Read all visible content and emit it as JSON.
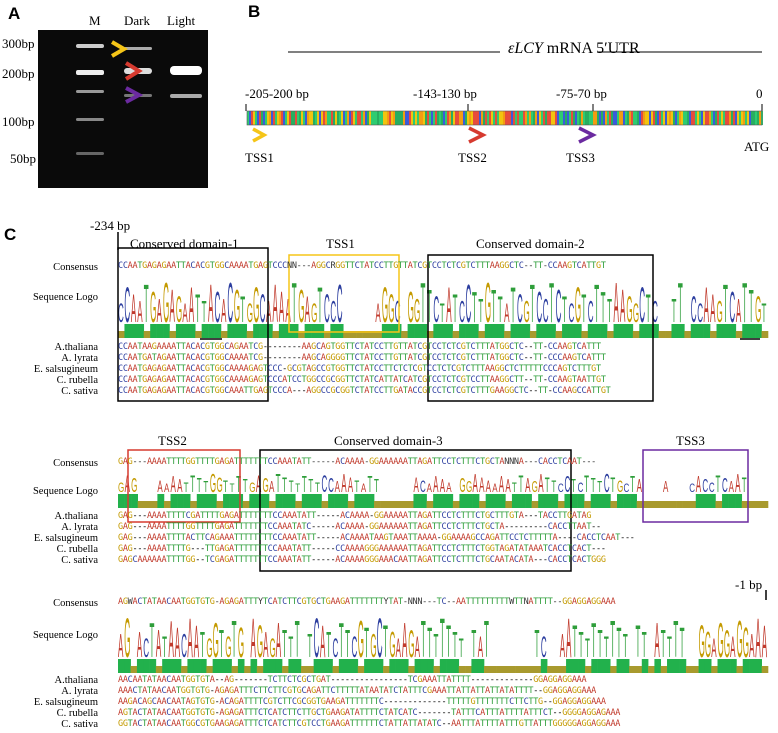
{
  "panels": {
    "a": "A",
    "b": "B",
    "c": "C"
  },
  "gel": {
    "lanes": [
      "M",
      "Dark",
      "Light"
    ],
    "markers": [
      "300bp",
      "200bp",
      "100bp",
      "50bp"
    ],
    "arrow_colors": [
      "#f5c518",
      "#d63a2f",
      "#6b2aa0"
    ]
  },
  "b": {
    "title_prefix": "ε",
    "title_gene": "LCY",
    "title_suffix": " mRNA 5′UTR",
    "positions": [
      "-205-200 bp",
      "-143-130 bp",
      "-75-70 bp",
      "0"
    ],
    "tss": [
      "TSS1",
      "TSS2",
      "TSS3"
    ],
    "atg": "ATG"
  },
  "c": {
    "start_label": "-234 bp",
    "end_label": "-1 bp",
    "row_labels": {
      "consensus": "Consensus",
      "logo": "Sequence Logo"
    },
    "species": [
      "A.thaliana",
      "A. lyrata",
      "E. salsugineum",
      "C. rubella",
      "C. sativa"
    ],
    "block1": {
      "domains": [
        "Conserved domain-1",
        "TSS1",
        "Conserved domain-2"
      ],
      "consensus": "CCAATGAGAGAATTACACGTGGCAAAATGAGTCCCNN---AGGCRGGTTCTATCCTTGTTATCGTCCTCTCGTCTTTAAGGCTC--TT-CCAAGTCATTGT",
      "rows": [
        "CCAATAAGAAAATTACACGTGGCAGAATCG--------AAGCAGTGGTTCTATCCTTGTTATCGTCCTCTCGTCTTTATGGCTC--TT-CCAAGTCATTT",
        "CCAATGATAGAATTACACGTGGCAAAATCG--------AAGCAGGGGTTCTATCCTTGTTATCGTCCTCTCGTCTTTATGGCTC--TT-CCCAAGTCATTT",
        "CCAATGAGAGAATTACACGTGGCAAAAGAGTCCC-GCGTAGCCGTGGTTCTATCCTTCTCTCGTCCTCTCGTCTTTAAGGCTCTTTTTCCCAGTCTTTGT",
        "CCAATGAGAGAATTACACGTGGCAAAAGAGTCCCATCCTGGCCGCGGTTCTATCATTATCATCGTCCTCTCGTCCTTAAGGCTT--TT-CCAAGTAATTGT",
        "CCAATGAGAGAATTACACGTGGCAAATTGAGTCCCA---AGGCCGCGGTCTATCCTTGATACCGTCCTCTCGTCTTTGAAGGCTC--TT-CCAAGCCATTGT"
      ]
    },
    "block2": {
      "domains": [
        "TSS2",
        "Conserved domain-3",
        "TSS3"
      ],
      "consensus": "GAG---AAAATTTTGGTTTTGAGATTTTTTTCCAAATATT-----ACAAAA-GGAAAAAATTAGATTCCTCTTTCTGCTANNNA---CACCTCAAT---",
      "rows": [
        "GAG---AAAATTTTCGATTTTGAGATTTTTTTCCAAATATT-----ACAAAA-GGAAAAATTAGATTCCTCTTTCTGCTTTGTA---TACCTTGATAG",
        "GAG---AAAATTTTGGTTTTGAGATTTTTTTCCAAATATC-----ACAAAA-GGAAAAAATTAGATTCCTCTTTCTGCTA---------CACCTTAAT--",
        "GAG---AAAATTTTACTTCAGAAATTTTTTTTCCAAATATT-----ACAAAATAAGTAAATTAAAA-GGAAAAGCCAGATTCCTCTTTTTA----CACCTCAAT---",
        "GAG---AAAATTTTG---TTGAGATTTTTTTCCAAATATT-----CCAAAAGGGAAAAAATTAGATTCCTCTTTCTGGTAGATATAAATCACCTCACT---",
        "GAGCAAAAAATTTTGG--TCGAGATTTTTTTCCAAATATT-----ACAAAAGGGAAACAATTAGATTCCTCTTTCTGCAATACATA---CACCTCACTGGG"
      ]
    },
    "block3": {
      "consensus": "AGWACTATAACAATGGTGTG-AGAGATTTYTCATCTTCGTGCTGAAGATTTTTTTYTAT-NNN---TC--AATTTTTTTTTWTTNATTTT--GGAGGAGGAAA",
      "rows": [
        "AACAATATAACAATGGTGTA--AG-------TCTTCTCGCTGAT----------------TCGAAATTATTTT-------------GGAGGAGGAAA",
        "AAACTATAACAATGGTGTG-AGAGATTTCTTCTTCGTGCAGATTCTTTTTATAATATCTATTTCGAAATTATTATTATTATATTTT--GGAGGAGGAAA",
        "AAGACAGCAACAATAGTGTG-ACAGATTTTCGTCTTCGCGGTGAAGATTTTTTTC-------------TTTTTGTTTTTTTCTTCTTG--GGAGGAGGAAA",
        "AGTACTATAACAATGGTGTG-AGAGATTTCTCATCTTCTTGCTGAAGATATTTTCTATCATC-------TATTTCATTTATTTTATTTCT--GGGGAGGAGAAA",
        "GGTACTATAACAATGGCGTGAAGAGATTTCTCATCTTCGTCCTGAAGATTTTTTCTATTATTATATC--AATTTATTTTATTTGTTATTTGGGGGAGGAGGAAA"
      ]
    }
  }
}
